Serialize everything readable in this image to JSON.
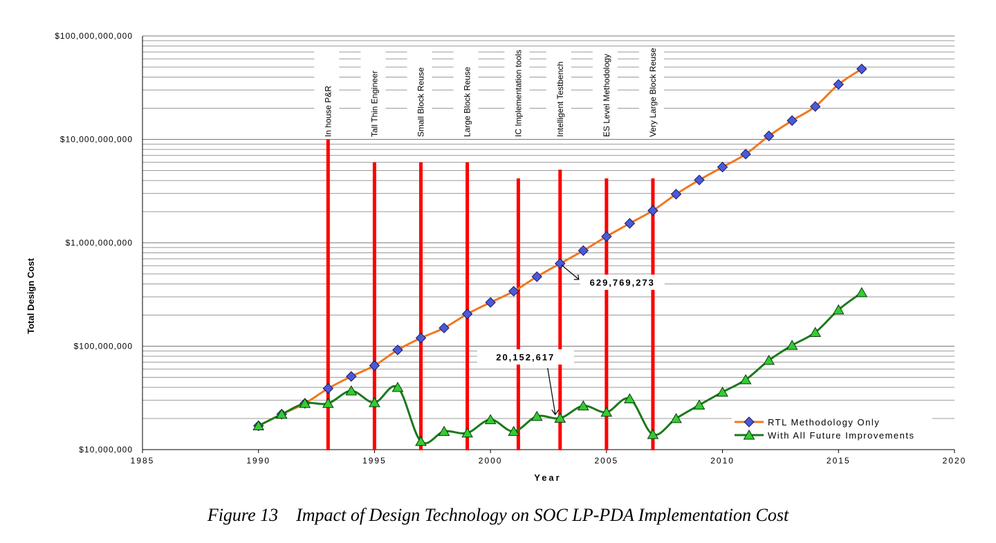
{
  "chart_data": {
    "type": "line",
    "xlabel": "Year",
    "ylabel": "Total Design Cost",
    "y_scale": "log",
    "xlim": [
      1985,
      2020
    ],
    "ylim": [
      10000000,
      100000000000
    ],
    "x_ticks": [
      "1985",
      "1990",
      "1995",
      "2000",
      "2005",
      "2010",
      "2015",
      "2020"
    ],
    "y_ticks": [
      "$10,000,000",
      "$100,000,000",
      "$1,000,000,000",
      "$10,000,000,000",
      "$100,000,000,000"
    ],
    "grid": "horizontal major and minor",
    "legend_position": "bottom-right",
    "series": [
      {
        "name": "RTL Methodology Only",
        "color": "#f07820",
        "marker": "diamond",
        "marker_color": "#4a5ad8",
        "x": [
          1990,
          1991,
          1992,
          1993,
          1994,
          1995,
          1996,
          1997,
          1998,
          1999,
          2000,
          2001,
          2002,
          2003,
          2004,
          2005,
          2006,
          2007,
          2008,
          2009,
          2010,
          2011,
          2012,
          2013,
          2014,
          2015,
          2016
        ],
        "y": [
          17000000,
          22000000,
          28000000,
          39000000,
          51000000,
          65000000,
          92000000,
          120000000,
          150000000,
          205000000,
          265000000,
          340000000,
          470000000,
          629769273,
          840000000,
          1150000000,
          1540000000,
          2050000000,
          2950000000,
          4050000000,
          5400000000,
          7200000000,
          10800000000,
          15200000000,
          20800000000,
          34000000000,
          48000000000
        ]
      },
      {
        "name": "With All Future Improvements",
        "color": "#1a7a1a",
        "marker": "triangle",
        "marker_color": "#33cc33",
        "x": [
          1990,
          1991,
          1992,
          1993,
          1994,
          1995,
          1996,
          1997,
          1998,
          1999,
          2000,
          2001,
          2002,
          2003,
          2004,
          2005,
          2006,
          2007,
          2008,
          2009,
          2010,
          2011,
          2012,
          2013,
          2014,
          2015,
          2016
        ],
        "y": [
          17000000,
          22000000,
          28000000,
          28000000,
          37000000,
          28500000,
          40000000,
          12000000,
          15000000,
          14500000,
          19500000,
          15000000,
          21000000,
          20152617,
          26500000,
          23000000,
          31000000,
          14000000,
          20000000,
          27000000,
          36000000,
          47500000,
          73000000,
          102000000,
          136000000,
          225000000,
          330000000
        ]
      }
    ],
    "milestones": [
      {
        "label": "In house P&R",
        "year": 1993,
        "top": 10000000000
      },
      {
        "label": "Tall Thin Engineer",
        "year": 1995,
        "top": 6000000000
      },
      {
        "label": "Small Block Reuse",
        "year": 1997,
        "top": 6000000000
      },
      {
        "label": "Large Block Reuse",
        "year": 1999,
        "top": 6000000000
      },
      {
        "label": "IC Implementation tools",
        "year": 2001.2,
        "top": 4200000000
      },
      {
        "label": "Intelligent Testbench",
        "year": 2003,
        "top": 5100000000
      },
      {
        "label": "ES Level Methodology",
        "year": 2005,
        "top": 4200000000
      },
      {
        "label": "Very Large Block Reuse",
        "year": 2007,
        "top": 4200000000
      }
    ],
    "annotations": [
      {
        "text": "629,769,273",
        "x": 2003,
        "y": 629769273
      },
      {
        "text": "20,152,617",
        "x": 2003,
        "y": 20152617
      }
    ]
  },
  "caption": {
    "figure_number": "Figure 13",
    "text": "Impact of Design Technology on SOC LP-PDA Implementation Cost"
  }
}
